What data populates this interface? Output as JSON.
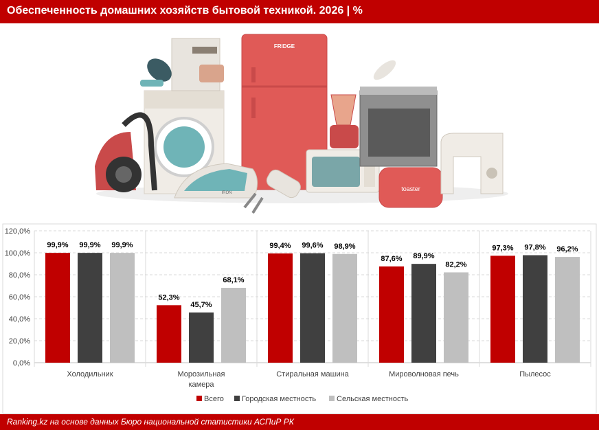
{
  "header": {
    "title": "Обеспеченность домашних хозяйств бытовой техникой. 2026 | %"
  },
  "illustration": {
    "fridge_label": "FRIDGE",
    "iron_label": "IRON",
    "toaster_label": "toaster"
  },
  "footer": {
    "source": "Ranking.kz на основе данных Бюро национальной статистики АСПиР РК"
  },
  "colors": {
    "total": "#c00000",
    "urban": "#404040",
    "rural": "#bfbfbf",
    "brand": "#c00000"
  },
  "chart_data": {
    "type": "bar",
    "categories": [
      "Холодильник",
      "Морозильная камера",
      "Стиральная машина",
      "Мироволновая печь",
      "Пылесос"
    ],
    "category_lines": [
      [
        "Холодильник"
      ],
      [
        "Морозильная",
        "камера"
      ],
      [
        "Стиральная машина"
      ],
      [
        "Мироволновая печь"
      ],
      [
        "Пылесос"
      ]
    ],
    "series": [
      {
        "name": "Всего",
        "values": [
          99.9,
          52.3,
          99.4,
          87.6,
          97.3
        ],
        "labels": [
          "99,9%",
          "52,3%",
          "99,4%",
          "87,6%",
          "97,3%"
        ]
      },
      {
        "name": "Городская местность",
        "values": [
          99.9,
          45.7,
          99.6,
          89.9,
          97.8
        ],
        "labels": [
          "99,9%",
          "45,7%",
          "99,6%",
          "89,9%",
          "97,8%"
        ]
      },
      {
        "name": "Сельская местность",
        "values": [
          99.9,
          68.1,
          98.9,
          82.2,
          96.2
        ],
        "labels": [
          "99,9%",
          "68,1%",
          "98,9%",
          "82,2%",
          "96,2%"
        ]
      }
    ],
    "ylim": [
      0,
      120
    ],
    "yticks": [
      0,
      20,
      40,
      60,
      80,
      100,
      120
    ],
    "ytick_labels": [
      "0,0%",
      "20,0%",
      "40,0%",
      "60,0%",
      "80,0%",
      "100,0%",
      "120,0%"
    ],
    "grid": true,
    "legend_position": "bottom"
  }
}
